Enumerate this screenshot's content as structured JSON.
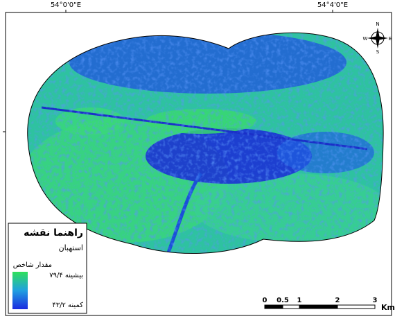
{
  "grid_labels": {
    "top": [
      "54°0'0\"E",
      "54°4'0\"E"
    ]
  },
  "north_arrow": {
    "n": "N",
    "s": "S",
    "e": "E",
    "w": "W"
  },
  "legend": {
    "title": "راهنما نقشه",
    "place": "استهبان",
    "index_title": "مقدار شاخص",
    "max_label": "بیشینه ۷۹/۴",
    "min_label": "کمینه ۴۳/۲"
  },
  "scale_bar": {
    "labels": [
      "0",
      "0.5",
      "1",
      "2",
      "3"
    ],
    "unit": "Km"
  }
}
